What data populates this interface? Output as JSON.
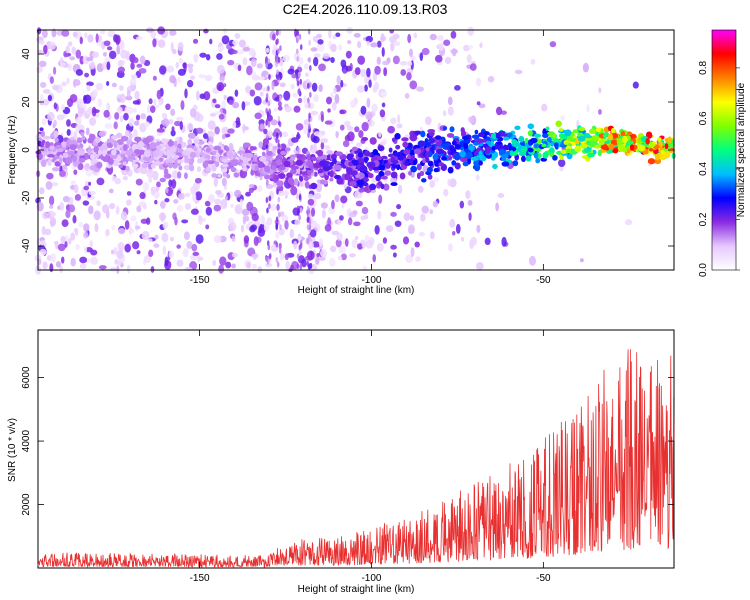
{
  "figure_title": "C2E4.2026.110.09.13.R03",
  "chart_data": [
    {
      "type": "heatmap",
      "title": "",
      "xlabel": "Height of straight line (km)",
      "ylabel": "Frequency (Hz)",
      "xlim": [
        -197,
        -12
      ],
      "ylim": [
        -50,
        50
      ],
      "x_ticks": [
        -150,
        -100,
        -50
      ],
      "y_ticks": [
        -40,
        -20,
        0,
        20,
        40
      ],
      "colorbar": {
        "label": "Normalized spectral amplitude",
        "range": [
          0,
          0.95
        ],
        "ticks": [
          0.0,
          0.2,
          0.4,
          0.6,
          0.8
        ],
        "colormap": [
          "#ffffff",
          "#e6c8ff",
          "#8a2be2",
          "#0000ff",
          "#00bfff",
          "#00ff7f",
          "#80ff00",
          "#ffff00",
          "#ff8000",
          "#ff0000",
          "#ff00ff"
        ]
      },
      "ridge": {
        "description_points": [
          {
            "x": -195,
            "freq": 0,
            "amp": 0.15
          },
          {
            "x": -150,
            "freq": -2,
            "amp": 0.12
          },
          {
            "x": -115,
            "freq": -8,
            "amp": 0.2
          },
          {
            "x": -100,
            "freq": -6,
            "amp": 0.25
          },
          {
            "x": -80,
            "freq": 0,
            "amp": 0.3
          },
          {
            "x": -60,
            "freq": 2,
            "amp": 0.4
          },
          {
            "x": -45,
            "freq": 3,
            "amp": 0.55
          },
          {
            "x": -30,
            "freq": 4,
            "amp": 0.75
          },
          {
            "x": -12,
            "freq": 0,
            "amp": 0.8
          }
        ]
      }
    },
    {
      "type": "line",
      "title": "",
      "xlabel": "Height of straight line (km)",
      "ylabel": "SNR (10 * v/v)",
      "xlim": [
        -197,
        -12
      ],
      "ylim": [
        0,
        7500
      ],
      "x_ticks": [
        -150,
        -100,
        -50
      ],
      "y_ticks": [
        2000,
        4000,
        6000
      ],
      "line_color": "#e83030",
      "envelope": [
        {
          "x": -197,
          "max": 500
        },
        {
          "x": -130,
          "max": 400
        },
        {
          "x": -125,
          "max": 900
        },
        {
          "x": -110,
          "max": 1000
        },
        {
          "x": -90,
          "max": 1600
        },
        {
          "x": -70,
          "max": 2700
        },
        {
          "x": -55,
          "max": 3600
        },
        {
          "x": -45,
          "max": 4600
        },
        {
          "x": -30,
          "max": 6600
        },
        {
          "x": -20,
          "max": 7300
        },
        {
          "x": -12,
          "max": 6800
        }
      ]
    }
  ]
}
